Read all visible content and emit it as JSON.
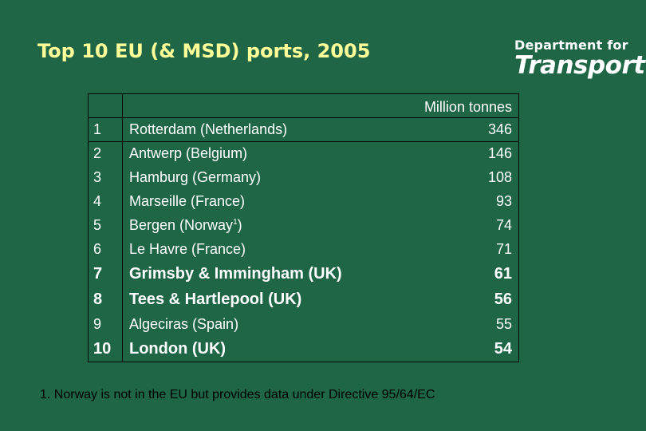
{
  "slide": {
    "title": "Top 10 EU (& MSD) ports, 2005",
    "logo_top": "Department for",
    "logo_main": "Transport",
    "unit_header": "Million tonnes",
    "footnote": "1. Norway is not in the EU but provides data under Directive 95/64/EC"
  },
  "rows": [
    {
      "rank": "1",
      "name": "Rotterdam (Netherlands)",
      "value": "346"
    },
    {
      "rank": "2",
      "name": "Antwerp (Belgium)",
      "value": "146"
    },
    {
      "rank": "3",
      "name": "Hamburg (Germany)",
      "value": "108"
    },
    {
      "rank": "4",
      "name": "Marseille (France)",
      "value": "93"
    },
    {
      "rank": "5",
      "name": "Bergen (Norway",
      "name_sup": "1",
      "name_tail": ")",
      "value": "74"
    },
    {
      "rank": "6",
      "name": "Le Havre (France)",
      "value": "71"
    },
    {
      "rank": "7",
      "name": "Grimsby & Immingham (UK)",
      "value": "61"
    },
    {
      "rank": "8",
      "name": "Tees & Hartlepool (UK)",
      "value": "56"
    },
    {
      "rank": "9",
      "name": "Algeciras (Spain)",
      "value": "55"
    },
    {
      "rank": "10",
      "name": "London (UK)",
      "value": "54"
    }
  ],
  "colors": {
    "background": "#1e6645",
    "title": "#ffff99",
    "text": "#ffffff",
    "footnote": "#000000"
  }
}
